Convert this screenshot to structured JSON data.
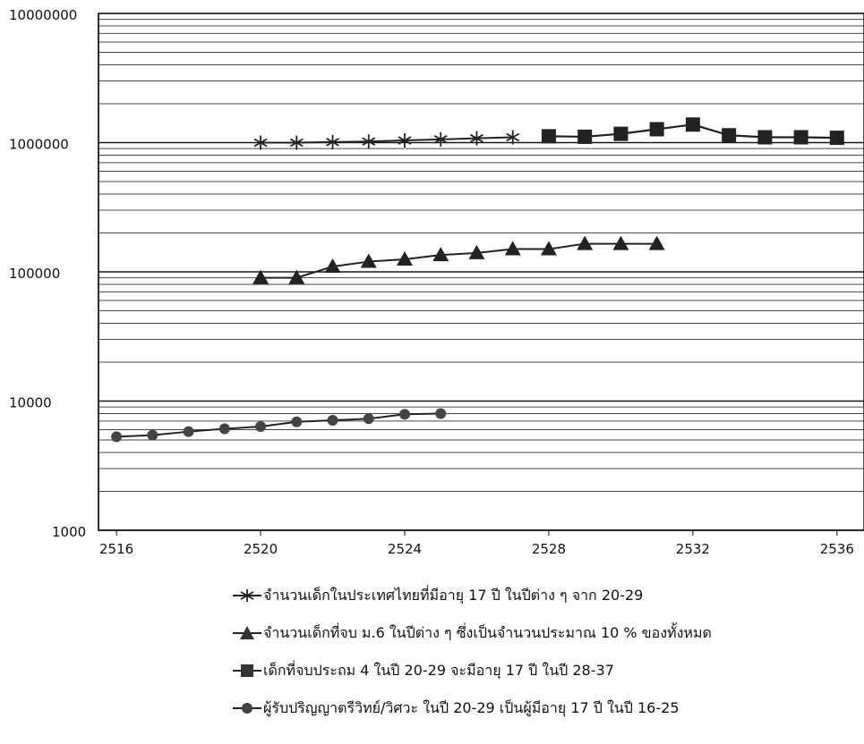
{
  "chart_data": {
    "type": "line",
    "title": "",
    "xlabel": "",
    "ylabel": "",
    "x_ticks": [
      "2516",
      "2520",
      "2524",
      "2528",
      "2532",
      "2536"
    ],
    "y_ticks": [
      "1000",
      "10000",
      "100000",
      "1000000",
      "10000000"
    ],
    "xlim": [
      2516,
      2536
    ],
    "ylim": [
      1000,
      10000000
    ],
    "y_scale": "log",
    "grid": true,
    "legend_position": "bottom",
    "series": [
      {
        "name": "จำนวนเด็กในประเทศไทยที่มีอายุ 17 ปี ในปีต่าง ๆ จาก 20-29",
        "marker": "star",
        "color": "#222222",
        "x": [
          2520,
          2521,
          2522,
          2523,
          2524,
          2525,
          2526,
          2527
        ],
        "y": [
          1000000,
          1000000,
          1010000,
          1020000,
          1040000,
          1060000,
          1080000,
          1100000
        ]
      },
      {
        "name": "จำนวนเด็กที่จบ ม.6 ในปีต่าง ๆ ซึ่งเป็นจำนวนประมาณ 10 % ของทั้งหมด",
        "marker": "triangle",
        "color": "#222222",
        "x": [
          2520,
          2521,
          2522,
          2523,
          2524,
          2525,
          2526,
          2527,
          2528,
          2529,
          2530,
          2531
        ],
        "y": [
          90000,
          90000,
          110000,
          120000,
          125000,
          135000,
          140000,
          150000,
          150000,
          165000,
          165000,
          165000
        ]
      },
      {
        "name": "เด็กที่จบประถม 4 ในปี 20-29 จะมีอายุ 17 ปี ในปี 28-37",
        "marker": "square",
        "color": "#222222",
        "x": [
          2528,
          2529,
          2530,
          2531,
          2532,
          2533,
          2534,
          2535,
          2536
        ],
        "y": [
          1120000,
          1110000,
          1170000,
          1270000,
          1380000,
          1140000,
          1100000,
          1100000,
          1090000
        ]
      },
      {
        "name": "ผู้รับปริญญาตรีวิทย์/วิศวะ ในปี 20-29 เป็นผู้มีอายุ 17 ปี ในปี 16-25",
        "marker": "circle",
        "color": "#222222",
        "x": [
          2516,
          2517,
          2518,
          2519,
          2520,
          2521,
          2522,
          2523,
          2524,
          2525
        ],
        "y": [
          5300,
          5450,
          5800,
          6100,
          6350,
          6900,
          7100,
          7300,
          7900,
          8000
        ]
      }
    ]
  }
}
